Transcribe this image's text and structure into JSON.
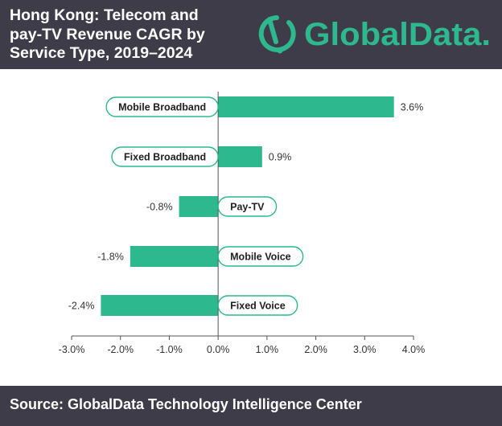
{
  "header": {
    "title_lines": [
      "Hong Kong: Telecom and",
      "pay-TV Revenue CAGR by",
      "Service Type, 2019–2024"
    ],
    "logo_text": "GlobalData.",
    "brand_color": "#2db88e",
    "background": "#3f3c4a"
  },
  "chart_data": {
    "type": "bar",
    "orientation": "horizontal",
    "categories": [
      "Mobile Broadband",
      "Fixed Broadband",
      "Pay-TV",
      "Mobile Voice",
      "Fixed Voice"
    ],
    "values": [
      3.6,
      0.9,
      -0.8,
      -1.8,
      -2.4
    ],
    "value_labels": [
      "3.6%",
      "0.9%",
      "-0.8%",
      "-1.8%",
      "-2.4%"
    ],
    "x_ticks": [
      -3.0,
      -2.0,
      -1.0,
      0.0,
      1.0,
      2.0,
      3.0,
      4.0
    ],
    "x_tick_labels": [
      "-3.0%",
      "-2.0%",
      "-1.0%",
      "0.0%",
      "1.0%",
      "2.0%",
      "3.0%",
      "4.0%"
    ],
    "xlim": [
      -3.0,
      4.0
    ],
    "bar_color": "#2db88e",
    "grid": false,
    "legend": "none"
  },
  "footer": {
    "source": "Source: GlobalData Technology Intelligence Center"
  }
}
